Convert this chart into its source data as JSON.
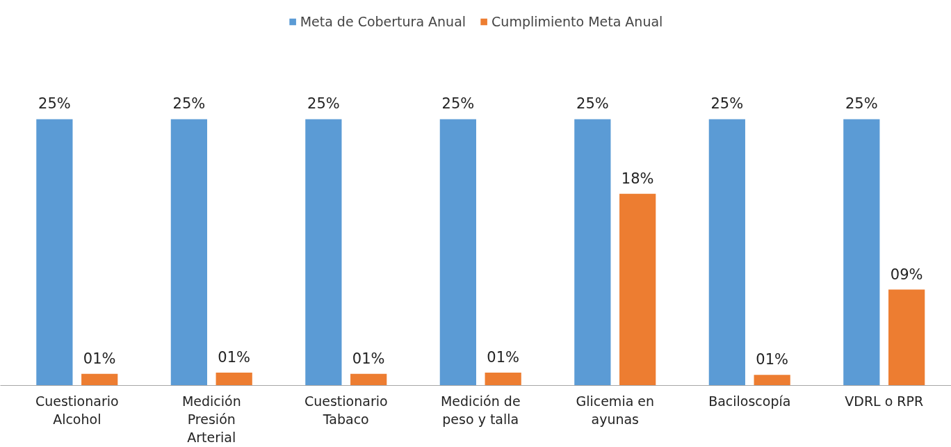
{
  "chart_data": {
    "type": "bar",
    "categories": [
      "Cuestionario Alcohol",
      "Medición Presión Arterial",
      "Cuestionario Tabaco",
      "Medición de peso y talla",
      "Glicemia en ayunas",
      "Baciloscopía",
      "VDRL o RPR"
    ],
    "series": [
      {
        "name": "Meta de Cobertura Anual",
        "color": "#5b9bd5",
        "values": [
          25,
          25,
          25,
          25,
          25,
          25,
          25
        ],
        "value_labels": [
          "25%",
          "25%",
          "25%",
          "25%",
          "25%",
          "25%",
          "25%"
        ]
      },
      {
        "name": "Cumplimiento Meta Anual",
        "color": "#ed7d31",
        "values": [
          1.1,
          1.2,
          1.1,
          1.2,
          18,
          1,
          9
        ],
        "value_labels": [
          "01%",
          "01%",
          "01%",
          "01%",
          "18%",
          "01%",
          "09%"
        ]
      }
    ],
    "grid": false,
    "legend": "top"
  }
}
